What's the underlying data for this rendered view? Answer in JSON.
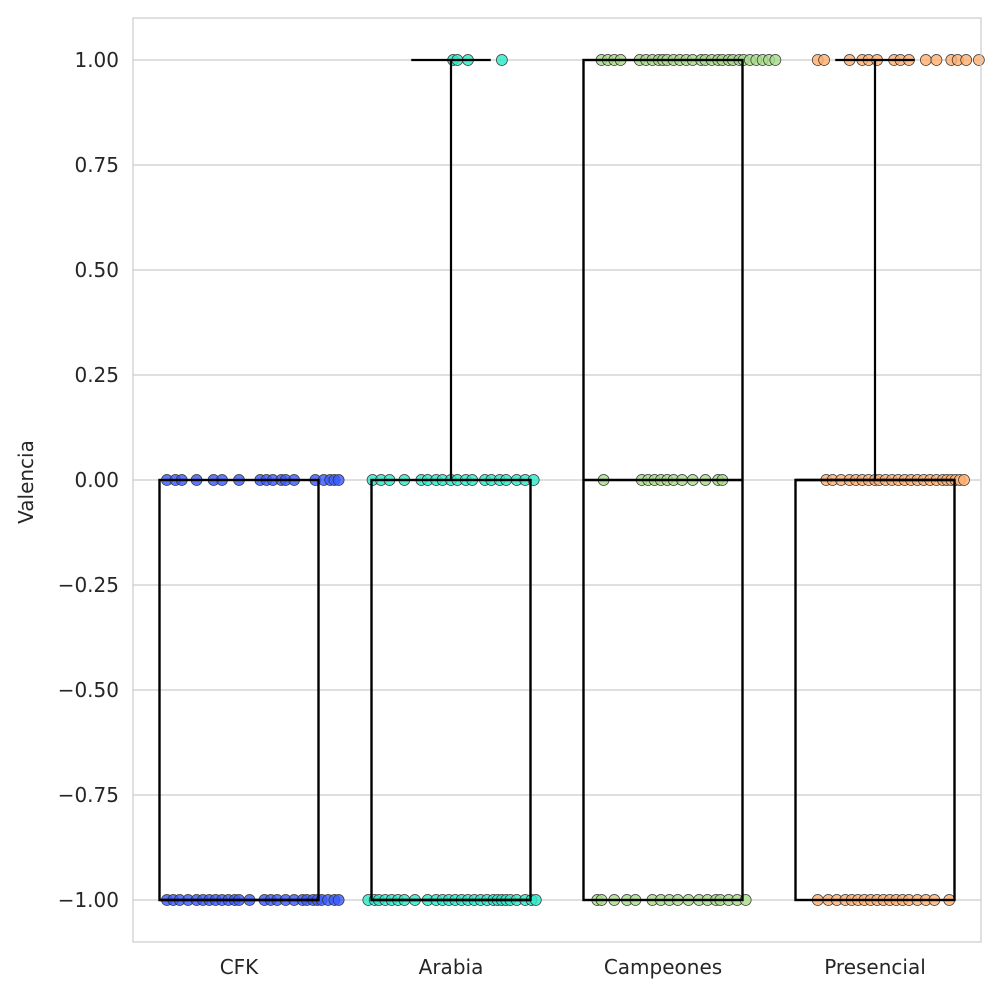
{
  "chart_data": {
    "type": "box",
    "ylabel": "Valencia",
    "xlabel": "",
    "ylim": [
      -1.1,
      1.1
    ],
    "yticks": [
      1.0,
      0.75,
      0.5,
      0.25,
      0.0,
      -0.25,
      -0.5,
      -0.75,
      -1.0
    ],
    "ytick_labels": [
      "1.00",
      "0.75",
      "0.50",
      "0.25",
      "0.00",
      "−0.25",
      "−0.50",
      "−0.75",
      "−1.00"
    ],
    "grid": "horizontal",
    "categories": [
      "CFK",
      "Arabia",
      "Campeones",
      "Presencial"
    ],
    "colors": [
      "#3b5bfa",
      "#2ee8c8",
      "#a8dc8a",
      "#ffb070"
    ],
    "boxes": [
      {
        "q1": -1,
        "median": -1,
        "q3": 0,
        "whisker_low": -1,
        "whisker_high": 0
      },
      {
        "q1": -1,
        "median": -1,
        "q3": 0,
        "whisker_low": -1,
        "whisker_high": 1
      },
      {
        "q1": -1,
        "median": 0,
        "q3": 1,
        "whisker_low": -1,
        "whisker_high": 1
      },
      {
        "q1": -1,
        "median": 0,
        "q3": 0,
        "whisker_low": -1,
        "whisker_high": 1
      }
    ],
    "points": [
      {
        "group": "CFK",
        "y": 0,
        "jitter": [
          -0.34,
          -0.3,
          -0.27,
          -0.2,
          -0.12,
          -0.08,
          0.0,
          0.1,
          0.13,
          0.16,
          0.2,
          0.22,
          0.26,
          0.36,
          0.4,
          0.43,
          0.45,
          0.47
        ]
      },
      {
        "group": "CFK",
        "y": -1,
        "jitter": [
          -0.34,
          -0.31,
          -0.28,
          -0.24,
          -0.2,
          -0.17,
          -0.14,
          -0.11,
          -0.08,
          -0.05,
          -0.02,
          0.0,
          0.05,
          0.12,
          0.15,
          0.18,
          0.22,
          0.26,
          0.3,
          0.32,
          0.35,
          0.37,
          0.39,
          0.42,
          0.45,
          0.47
        ]
      },
      {
        "group": "Arabia",
        "y": 1,
        "jitter": [
          0.01,
          0.03,
          0.08,
          0.24
        ]
      },
      {
        "group": "Arabia",
        "y": 0,
        "jitter": [
          -0.37,
          -0.33,
          -0.29,
          -0.22,
          -0.14,
          -0.11,
          -0.07,
          -0.04,
          0.0,
          0.03,
          0.07,
          0.1,
          0.16,
          0.19,
          0.23,
          0.26,
          0.31,
          0.35,
          0.39
        ]
      },
      {
        "group": "Arabia",
        "y": -1,
        "jitter": [
          -0.39,
          -0.36,
          -0.34,
          -0.31,
          -0.28,
          -0.25,
          -0.22,
          -0.17,
          -0.11,
          -0.07,
          -0.04,
          -0.01,
          0.02,
          0.05,
          0.08,
          0.11,
          0.14,
          0.17,
          0.2,
          0.22,
          0.24,
          0.26,
          0.28,
          0.31,
          0.35,
          0.38,
          0.4
        ]
      },
      {
        "group": "Campeones",
        "y": 1,
        "jitter": [
          -0.29,
          -0.26,
          -0.23,
          -0.2,
          -0.11,
          -0.08,
          -0.05,
          -0.02,
          0.0,
          0.02,
          0.05,
          0.08,
          0.11,
          0.14,
          0.18,
          0.2,
          0.23,
          0.26,
          0.28,
          0.31,
          0.33,
          0.36,
          0.38,
          0.41,
          0.44,
          0.47,
          0.5,
          0.53
        ]
      },
      {
        "group": "Campeones",
        "y": 0,
        "jitter": [
          -0.28,
          -0.1,
          -0.07,
          -0.04,
          -0.01,
          0.02,
          0.05,
          0.09,
          0.14,
          0.2,
          0.26,
          0.28
        ]
      },
      {
        "group": "Campeones",
        "y": -1,
        "jitter": [
          -0.31,
          -0.29,
          -0.23,
          -0.17,
          -0.13,
          -0.05,
          -0.01,
          0.03,
          0.07,
          0.12,
          0.17,
          0.21,
          0.25,
          0.27,
          0.31,
          0.35,
          0.39
        ]
      },
      {
        "group": "Presencial",
        "y": 1,
        "jitter": [
          -0.27,
          -0.24,
          -0.12,
          -0.06,
          -0.03,
          0.01,
          0.09,
          0.12,
          0.16,
          0.24,
          0.29,
          0.36,
          0.39,
          0.43,
          0.49
        ]
      },
      {
        "group": "Presencial",
        "y": 0,
        "jitter": [
          -0.23,
          -0.2,
          -0.16,
          -0.12,
          -0.09,
          -0.06,
          -0.03,
          0.0,
          0.02,
          0.05,
          0.08,
          0.11,
          0.14,
          0.17,
          0.2,
          0.23,
          0.26,
          0.29,
          0.32,
          0.34,
          0.36,
          0.38,
          0.4,
          0.42
        ]
      },
      {
        "group": "Presencial",
        "y": -1,
        "jitter": [
          -0.27,
          -0.22,
          -0.18,
          -0.14,
          -0.11,
          -0.08,
          -0.05,
          -0.02,
          0.01,
          0.04,
          0.07,
          0.1,
          0.13,
          0.16,
          0.2,
          0.24,
          0.28,
          0.35
        ]
      }
    ]
  }
}
